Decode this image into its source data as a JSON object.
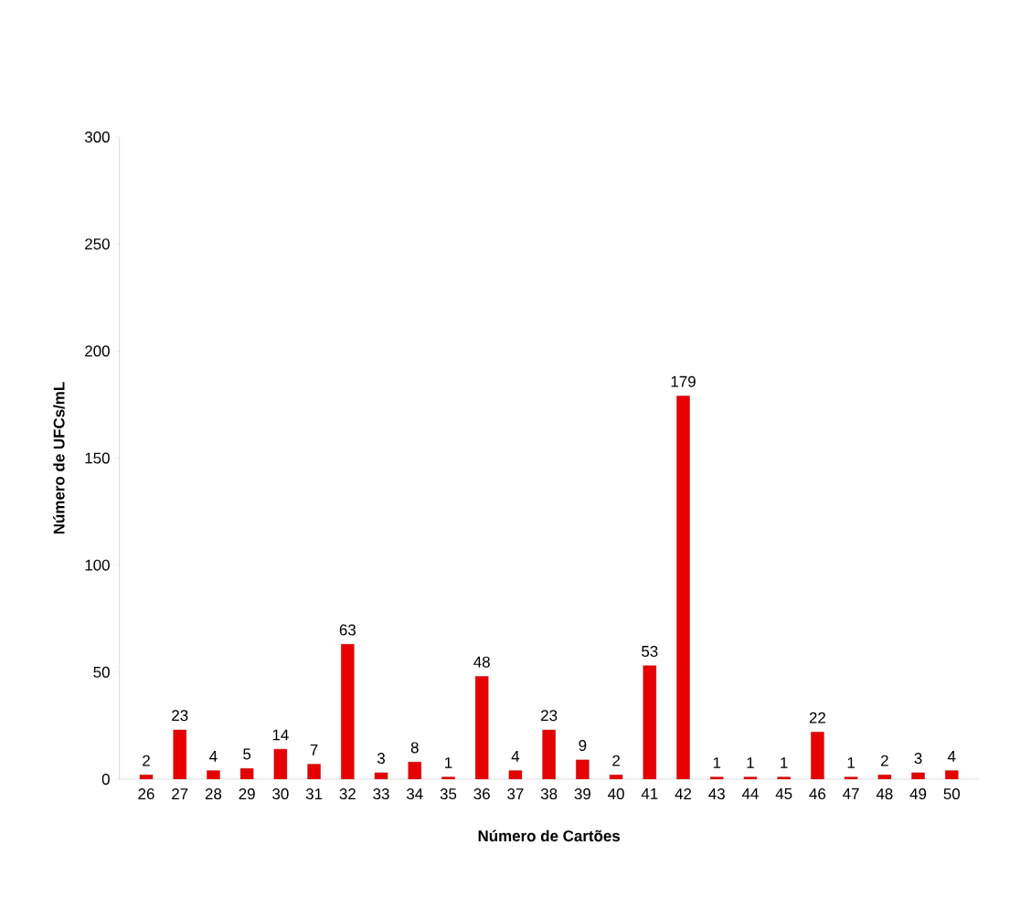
{
  "chart_data": {
    "type": "bar",
    "xlabel": "Número de Cartões",
    "ylabel": "Número de  UFCs/mL",
    "categories": [
      "26",
      "27",
      "28",
      "29",
      "30",
      "31",
      "32",
      "33",
      "34",
      "35",
      "36",
      "37",
      "38",
      "39",
      "40",
      "41",
      "42",
      "43",
      "44",
      "45",
      "46",
      "47",
      "48",
      "49",
      "50"
    ],
    "values": [
      2,
      23,
      4,
      5,
      14,
      7,
      63,
      3,
      8,
      1,
      48,
      4,
      23,
      9,
      2,
      53,
      179,
      1,
      1,
      1,
      22,
      1,
      2,
      3,
      4
    ],
    "color": "#e60000",
    "ylim": [
      0,
      300
    ],
    "yticks": [
      0,
      50,
      100,
      150,
      200,
      250,
      300
    ],
    "data_labels": true
  }
}
